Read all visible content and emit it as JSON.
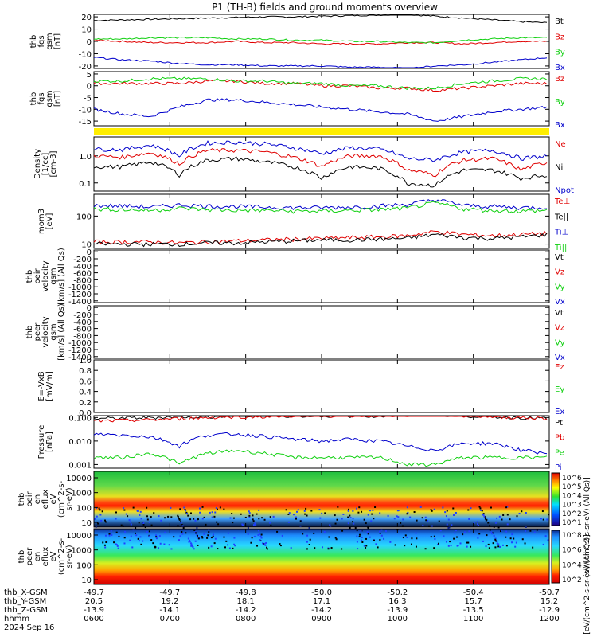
{
  "title": "P1 (TH-B) fields and ground moments overview",
  "colors": {
    "black": "#000000",
    "red": "#e00000",
    "green": "#10d010",
    "blue": "#0000cc",
    "yellow": "#ffee00"
  },
  "chart_data": [
    {
      "id": "fgs_gsm",
      "type": "line",
      "ylabel_lines": [
        "thb",
        "fgs",
        "gsm",
        "[nT]"
      ],
      "yticks": [
        "20",
        "10",
        "0",
        "-10",
        "-20"
      ],
      "ylim": [
        -22,
        22
      ],
      "series": [
        {
          "name": "Bt",
          "color": "black",
          "values": [
            17,
            17.5,
            18,
            18.5,
            19,
            19.5,
            20,
            20,
            20.5,
            21,
            21.5,
            22,
            20.5,
            19,
            17.5,
            16,
            15
          ]
        },
        {
          "name": "Bz",
          "color": "red",
          "values": [
            1,
            0,
            -1,
            -1,
            -1,
            0,
            -1,
            -1,
            -2,
            -2,
            -2,
            -1,
            -1,
            -2,
            -1,
            0,
            0
          ]
        },
        {
          "name": "By",
          "color": "green",
          "values": [
            2,
            2,
            3,
            3,
            3,
            2,
            2,
            1,
            1,
            0,
            0,
            -1,
            -1,
            1,
            2,
            3,
            3
          ]
        },
        {
          "name": "Bx",
          "color": "blue",
          "values": [
            -13,
            -15,
            -16,
            -18,
            -19,
            -19,
            -20,
            -20,
            -20,
            -21,
            -21,
            -22,
            -20,
            -19,
            -17,
            -15,
            -13
          ]
        }
      ]
    },
    {
      "id": "fgs_gsm_zoom",
      "type": "line",
      "ylabel_lines": [
        "thb",
        "fgs",
        "gsm",
        "[nT]"
      ],
      "yticks": [
        "5",
        "0",
        "-5",
        "-10",
        "-15"
      ],
      "ylim": [
        -17,
        6
      ],
      "series": [
        {
          "name": "Bz",
          "color": "red",
          "values": [
            1,
            1,
            1,
            1,
            2,
            2,
            1,
            1,
            0,
            0,
            -1,
            -1,
            -2,
            -1,
            0,
            1,
            1
          ]
        },
        {
          "name": "By",
          "color": "green",
          "values": [
            2,
            2,
            3,
            3,
            3,
            2,
            2,
            1,
            1,
            0,
            0,
            -1,
            -1,
            1,
            2,
            3,
            3
          ]
        },
        {
          "name": "Bx",
          "color": "blue",
          "values": [
            -10,
            -12,
            -13,
            -9,
            -6,
            -6,
            -7,
            -8,
            -9,
            -10,
            -11,
            -12,
            -15,
            -13,
            -11,
            -10,
            -9
          ]
        }
      ]
    },
    {
      "id": "density",
      "type": "line",
      "ylog": true,
      "ylabel_lines": [
        "Density",
        "[1/cc]",
        "[cm-3]"
      ],
      "yticks": [
        "1.0",
        "0.1"
      ],
      "ylim": [
        0.05,
        5
      ],
      "series": [
        {
          "name": "Ne",
          "color": "red",
          "values": [
            1.0,
            0.9,
            1.3,
            0.5,
            1.6,
            1.6,
            1.4,
            0.9,
            0.4,
            1.0,
            1.0,
            0.3,
            0.2,
            0.7,
            0.8,
            0.3,
            0.6
          ]
        },
        {
          "name": "Ni",
          "color": "black",
          "values": [
            0.4,
            0.4,
            0.6,
            0.2,
            0.7,
            0.8,
            0.6,
            0.4,
            0.15,
            0.4,
            0.35,
            0.1,
            0.08,
            0.3,
            0.3,
            0.15,
            0.2
          ]
        },
        {
          "name": "Npot",
          "color": "blue",
          "values": [
            1.8,
            1.7,
            2.5,
            1.0,
            3.0,
            3.2,
            2.8,
            2.0,
            1.2,
            2.0,
            1.8,
            0.8,
            0.7,
            1.4,
            1.6,
            0.8,
            1.0
          ]
        }
      ]
    },
    {
      "id": "temps",
      "type": "line",
      "ylog": true,
      "ylabel_lines": [
        "mom3",
        "[eV]"
      ],
      "yticks": [
        "100",
        "10"
      ],
      "ylim": [
        7,
        600
      ],
      "series": [
        {
          "name": "Te⊥",
          "color": "red",
          "values": [
            12,
            12,
            12,
            11,
            12,
            13,
            14,
            15,
            16,
            17,
            18,
            20,
            28,
            22,
            20,
            22,
            25
          ]
        },
        {
          "name": "Te||",
          "color": "black",
          "values": [
            10,
            10,
            10,
            10,
            11,
            11,
            12,
            13,
            14,
            14,
            15,
            16,
            22,
            17,
            16,
            18,
            22
          ]
        },
        {
          "name": "Ti⊥",
          "color": "blue",
          "values": [
            240,
            230,
            210,
            250,
            230,
            220,
            210,
            200,
            200,
            210,
            230,
            260,
            380,
            240,
            220,
            200,
            210
          ]
        },
        {
          "name": "Ti||",
          "color": "green",
          "values": [
            180,
            170,
            160,
            190,
            170,
            160,
            160,
            150,
            150,
            160,
            170,
            190,
            290,
            180,
            160,
            150,
            160
          ]
        }
      ]
    },
    {
      "id": "peir_vel",
      "type": "line",
      "ylabel_lines": [
        "thb",
        "peir",
        "velocity",
        "gsm",
        "[km/s] (All Qs)"
      ],
      "yticks": [
        "0",
        "-200",
        "-400",
        "-600",
        "-800",
        "-1000",
        "-1200",
        "-1400"
      ],
      "ylim": [
        -1450,
        50
      ],
      "series": [
        {
          "name": "Vt",
          "color": "black",
          "values": []
        },
        {
          "name": "Vz",
          "color": "red",
          "values": []
        },
        {
          "name": "Vy",
          "color": "green",
          "values": []
        },
        {
          "name": "Vx",
          "color": "blue",
          "values": []
        }
      ]
    },
    {
      "id": "peer_vel",
      "type": "line",
      "ylabel_lines": [
        "thb",
        "peer",
        "velocity",
        "gsm",
        "[km/s] (All Qs)"
      ],
      "yticks": [
        "0",
        "-200",
        "-400",
        "-600",
        "-800",
        "-1000",
        "-1200",
        "-1400"
      ],
      "ylim": [
        -1450,
        50
      ],
      "series": [
        {
          "name": "Vt",
          "color": "black",
          "values": []
        },
        {
          "name": "Vz",
          "color": "red",
          "values": []
        },
        {
          "name": "Vy",
          "color": "green",
          "values": []
        },
        {
          "name": "Vx",
          "color": "blue",
          "values": []
        }
      ]
    },
    {
      "id": "efield",
      "type": "line",
      "ylabel_lines": [
        "E=-VxB",
        "[mV/m]"
      ],
      "yticks": [
        "1.0",
        "0.8",
        "0.6",
        "0.4",
        "0.2",
        "0.0"
      ],
      "ylim": [
        0,
        1
      ],
      "series": [
        {
          "name": "Ez",
          "color": "red",
          "values": []
        },
        {
          "name": "Ey",
          "color": "green",
          "values": []
        },
        {
          "name": "Ex",
          "color": "blue",
          "values": []
        }
      ]
    },
    {
      "id": "pressure",
      "type": "line",
      "ylog": true,
      "ylabel_lines": [
        "Pressure",
        "[nPa]"
      ],
      "yticks": [
        "0.100",
        "0.010",
        "0.001"
      ],
      "ylim": [
        0.0007,
        0.12
      ],
      "series": [
        {
          "name": "Pt",
          "color": "black",
          "values": [
            0.09,
            0.095,
            0.1,
            0.11,
            0.11,
            0.12,
            0.12,
            0.12,
            0.12,
            0.12,
            0.12,
            0.13,
            0.14,
            0.12,
            0.11,
            0.1,
            0.09
          ]
        },
        {
          "name": "Pb",
          "color": "red",
          "values": [
            0.07,
            0.075,
            0.08,
            0.09,
            0.1,
            0.11,
            0.11,
            0.12,
            0.12,
            0.12,
            0.12,
            0.13,
            0.14,
            0.12,
            0.11,
            0.1,
            0.09
          ]
        },
        {
          "name": "Pe",
          "color": "green",
          "values": [
            0.002,
            0.002,
            0.003,
            0.001,
            0.003,
            0.004,
            0.003,
            0.002,
            0.002,
            0.002,
            0.002,
            0.001,
            0.001,
            0.002,
            0.002,
            0.002,
            0.002
          ]
        },
        {
          "name": "Pi",
          "color": "blue",
          "values": [
            0.02,
            0.018,
            0.015,
            0.006,
            0.018,
            0.02,
            0.016,
            0.012,
            0.01,
            0.012,
            0.01,
            0.006,
            0.004,
            0.008,
            0.008,
            0.004,
            0.003
          ]
        }
      ]
    },
    {
      "id": "peir_spec",
      "type": "heatmap",
      "ylabel_lines": [
        "thb",
        "peir",
        "en",
        "eflux",
        "eV",
        "(cm^2-s-",
        "sr-eV)"
      ],
      "yticks": [
        "10000",
        "1000",
        "100",
        "10"
      ],
      "colorbar_label": "[eV/(cm^2-s-sr-eV) (All Qs)]",
      "colorbar_ticks": [
        "10^6",
        "10^5",
        "10^4",
        "10^3",
        "10^2",
        "10^1"
      ]
    },
    {
      "id": "peer_spec",
      "type": "heatmap",
      "ylabel_lines": [
        "thb",
        "peer",
        "en",
        "eflux",
        "eV",
        "(cm^2-s-",
        "sr-eV)"
      ],
      "yticks": [
        "10000",
        "1000",
        "100",
        "10"
      ],
      "colorbar_label": "[eV/(cm^2-s-sr-eV) (All Qs)]",
      "colorbar_ticks": [
        "10^8",
        "10^6",
        "10^4",
        "10^2"
      ]
    }
  ],
  "xaxis": {
    "row_labels": [
      "thb_X-GSM",
      "thb_Y-GSM",
      "thb_Z-GSM",
      "hhmm",
      "2024 Sep 16"
    ],
    "X": [
      "-49.7",
      "-49.7",
      "-49.8",
      "-50.0",
      "-50.2",
      "-50.4",
      "-50.7"
    ],
    "Y": [
      "20.5",
      "19.2",
      "18.1",
      "17.1",
      "16.3",
      "15.7",
      "15.2"
    ],
    "Z": [
      "-13.9",
      "-14.1",
      "-14.2",
      "-14.2",
      "-13.9",
      "-13.5",
      "-12.9"
    ],
    "hhmm": [
      "0600",
      "0700",
      "0800",
      "0900",
      "1000",
      "1100",
      "1200"
    ]
  },
  "yellow_bar_label": ""
}
